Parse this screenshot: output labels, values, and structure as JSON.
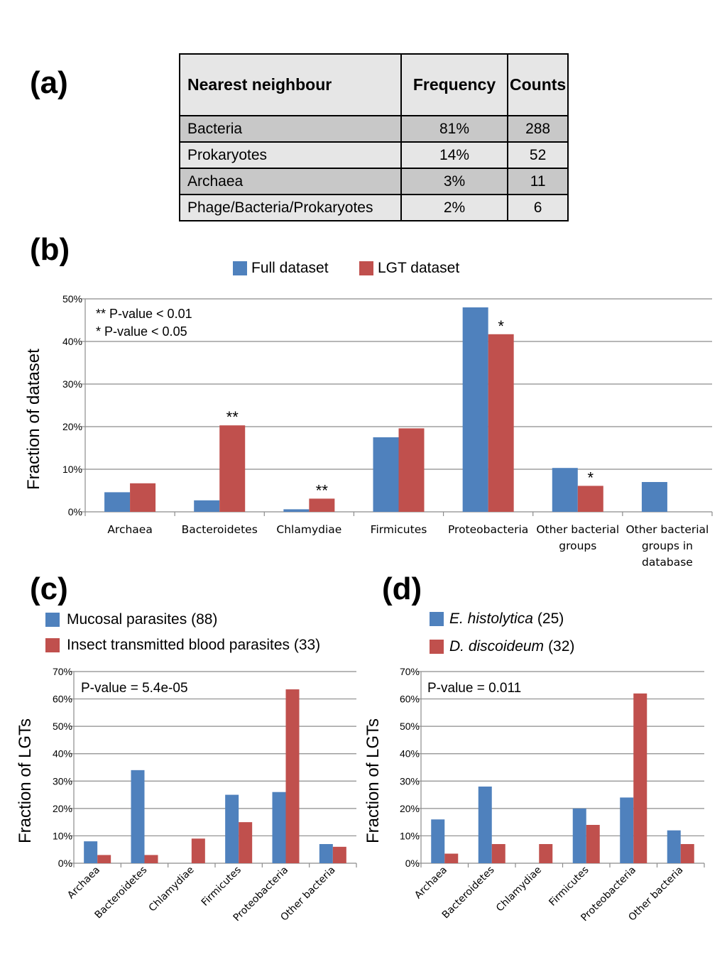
{
  "panels": {
    "a": "(a)",
    "b": "(b)",
    "c": "(c)",
    "d": "(d)"
  },
  "table": {
    "headers": [
      "Nearest neighbour",
      "Frequency",
      "Counts"
    ],
    "rows": [
      [
        "Bacteria",
        "81%",
        "288"
      ],
      [
        "Prokaryotes",
        "14%",
        "52"
      ],
      [
        "Archaea",
        "3%",
        "11"
      ],
      [
        "Phage/Bacteria/Prokaryotes",
        "2%",
        "6"
      ]
    ]
  },
  "colors": {
    "blue": "#4f81bd",
    "red": "#c0504d",
    "grid": "#8c8c8c"
  },
  "chart_data": [
    {
      "type": "bar",
      "ylabel": "Fraction of dataset",
      "ylim": [
        0,
        50
      ],
      "yticks": [
        "0%",
        "10%",
        "20%",
        "30%",
        "40%",
        "50%"
      ],
      "categories": [
        "Archaea",
        "Bacteroidetes",
        "Chlamydiae",
        "Firmicutes",
        "Proteobacteria",
        "Other bacterial groups",
        "Other bacterial groups in database"
      ],
      "series": [
        {
          "name": "Full dataset",
          "values": [
            4.6,
            2.7,
            0.6,
            17.5,
            48.0,
            10.3,
            7.0
          ]
        },
        {
          "name": "LGT dataset",
          "values": [
            6.7,
            20.3,
            3.1,
            19.6,
            41.7,
            6.1,
            0
          ]
        }
      ],
      "significance": [
        "",
        "**",
        "**",
        "",
        "*",
        "*",
        ""
      ],
      "notes": [
        "** P-value < 0.01",
        " * P-value < 0.05"
      ],
      "legend": "top-center"
    },
    {
      "type": "bar",
      "ylabel": "Fraction of LGTs",
      "ylim": [
        0,
        70
      ],
      "yticks": [
        "0%",
        "10%",
        "20%",
        "30%",
        "40%",
        "50%",
        "60%",
        "70%"
      ],
      "categories": [
        "Archaea",
        "Bacteroidetes",
        "Chlamydiae",
        "Firmicutes",
        "Proteobacteria",
        "Other bacteria"
      ],
      "series": [
        {
          "name": "Mucosal parasites (88)",
          "values": [
            8,
            34,
            0,
            25,
            26,
            7
          ]
        },
        {
          "name": "Insect transmitted blood parasites (33)",
          "values": [
            3,
            3,
            9,
            15,
            63.5,
            6
          ]
        }
      ],
      "annotation": "P-value = 5.4e-05",
      "legend": "top-left"
    },
    {
      "type": "bar",
      "ylabel": "Fraction of LGTs",
      "ylim": [
        0,
        70
      ],
      "yticks": [
        "0%",
        "10%",
        "20%",
        "30%",
        "40%",
        "50%",
        "60%",
        "70%"
      ],
      "categories": [
        "Archaea",
        "Bacteroidetes",
        "Chlamydiae",
        "Firmicutes",
        "Proteobacteria",
        "Other bacteria"
      ],
      "series": [
        {
          "name": "E. histolytica",
          "count": "(25)",
          "values": [
            16,
            28,
            0,
            20,
            24,
            12
          ]
        },
        {
          "name": "D. discoideum",
          "count": "(32)",
          "values": [
            3.5,
            7,
            7,
            14,
            62,
            7
          ]
        }
      ],
      "annotation": "P-value = 0.011",
      "legend": "top-left"
    }
  ]
}
